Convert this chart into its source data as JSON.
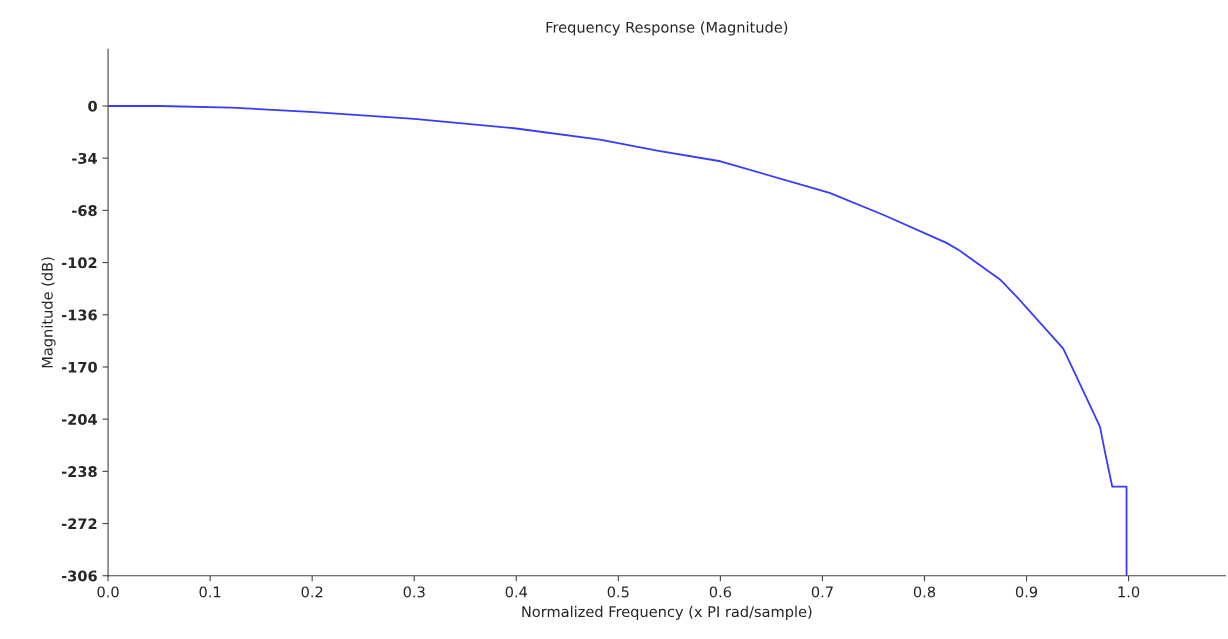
{
  "chart_data": {
    "type": "line",
    "title": "Frequency Response (Magnitude)",
    "xlabel": "Normalized Frequency (x PI rad/sample)",
    "ylabel": "Magnitude (dB)",
    "x": [
      0,
      0.05,
      0.121,
      0.202,
      0.3,
      0.398,
      0.482,
      0.538,
      0.6,
      0.707,
      0.76,
      0.821,
      0.834,
      0.874,
      0.89,
      0.936,
      0.96,
      0.972,
      0.977,
      0.984,
      0.998,
      0.998
    ],
    "series": [
      {
        "color": "#3a3aff",
        "values": [
          0,
          0,
          -1,
          -4,
          -8.4,
          -14.5,
          -21.9,
          -29,
          -36,
          -56.6,
          -71,
          -89,
          -94,
          -113,
          -124,
          -158,
          -192,
          -209,
          -226,
          -248,
          -248,
          -306
        ]
      }
    ],
    "xlim": [
      0,
      1.095
    ],
    "xticks": [
      {
        "value": 0,
        "label": "0.0"
      },
      0.1,
      0.2,
      0.3,
      0.4,
      0.5,
      0.6,
      0.7,
      0.8,
      0.9,
      {
        "value": 1,
        "label": "1.0"
      }
    ],
    "ylim": [
      -306,
      37
    ],
    "yticks": [
      0,
      -34,
      -68,
      -102,
      -136,
      -170,
      -204,
      -238,
      -272,
      -306
    ],
    "grid": false,
    "legend": false
  }
}
